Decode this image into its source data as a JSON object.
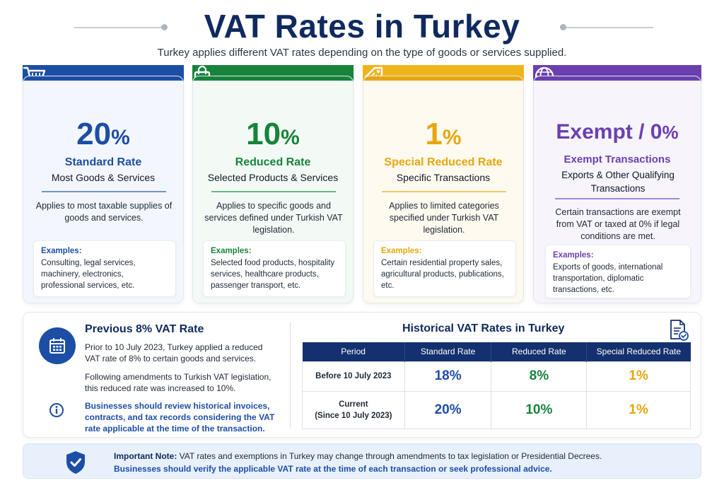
{
  "header": {
    "title": "VAT Rates in Turkey",
    "subtitle": "Turkey applies different VAT rates depending on the type of goods or services supplied."
  },
  "cards": [
    {
      "rate": "20",
      "unit": "%",
      "name": "Standard Rate",
      "sub": "Most Goods & Services",
      "desc": "Applies to most taxable supplies of goods and services.",
      "examples_label": "Examples:",
      "examples_text": "Consulting, legal services, machinery, electronics, professional services, etc.",
      "icon": "shopping-cart-icon",
      "color": "#1d4ea6",
      "tint": "#f3f7fd"
    },
    {
      "rate": "10",
      "unit": "%",
      "name": "Reduced Rate",
      "sub": "Selected Products & Services",
      "desc": "Applies to specific goods and services defined under Turkish VAT legislation.",
      "examples_label": "Examples:",
      "examples_text": "Selected food products, hospitality services, healthcare products, passenger transport, etc.",
      "icon": "shopping-bag-icon",
      "color": "#17833b",
      "tint": "#f3faf5"
    },
    {
      "rate": "1",
      "unit": "%",
      "name": "Special Reduced Rate",
      "sub": "Specific Transactions",
      "desc": "Applies to limited categories specified under Turkish VAT legislation.",
      "examples_label": "Examples:",
      "examples_text": "Certain residential property sales, agricultural products, publications, etc.",
      "icon": "price-tag-icon",
      "color": "#e6a70e",
      "tint": "#fefaef"
    },
    {
      "rate": "Exempt / 0",
      "unit": "%",
      "name": "Exempt Transactions",
      "sub": "Exports & Other Qualifying Transactions",
      "desc": "Certain transactions are exempt from VAT or taxed at 0% if legal conditions are met.",
      "examples_label": "Examples:",
      "examples_text": "Exports of goods, international transportation, diplomatic transactions, etc.",
      "icon": "globe-icon",
      "color": "#6b3fb0",
      "tint": "#f7f4fc"
    }
  ],
  "previous": {
    "title": "Previous 8% VAT Rate",
    "p1": "Prior to 10 July 2023, Turkey applied a reduced VAT rate of 8% to certain goods and services.",
    "p2": "Following amendments to Turkish VAT legislation, this reduced rate was increased to 10%.",
    "note": "Businesses should review historical invoices, contracts, and tax records considering the VAT rate applicable at the time of the transaction."
  },
  "history": {
    "title": "Historical VAT Rates in Turkey",
    "headers": [
      "Period",
      "Standard Rate",
      "Reduced Rate",
      "Special Reduced Rate"
    ],
    "rows": [
      {
        "period": "Before 10 July 2023",
        "period2": "",
        "standard": "18%",
        "reduced": "8%",
        "special": "1%"
      },
      {
        "period": "Current",
        "period2": "(Since 10 July 2023)",
        "standard": "20%",
        "reduced": "10%",
        "special": "1%"
      }
    ]
  },
  "note": {
    "label": "Important Note:",
    "line1": "VAT rates and exemptions in Turkey may change through amendments to tax legislation or Presidential Decrees.",
    "line2": "Businesses should verify the applicable VAT rate at the time of each transaction or seek professional advice."
  },
  "colors": {
    "navy": "#0f2a5f",
    "blue": "#1d4ea6",
    "green": "#17833b",
    "yellow": "#e6a70e",
    "purple": "#6b3fb0"
  }
}
